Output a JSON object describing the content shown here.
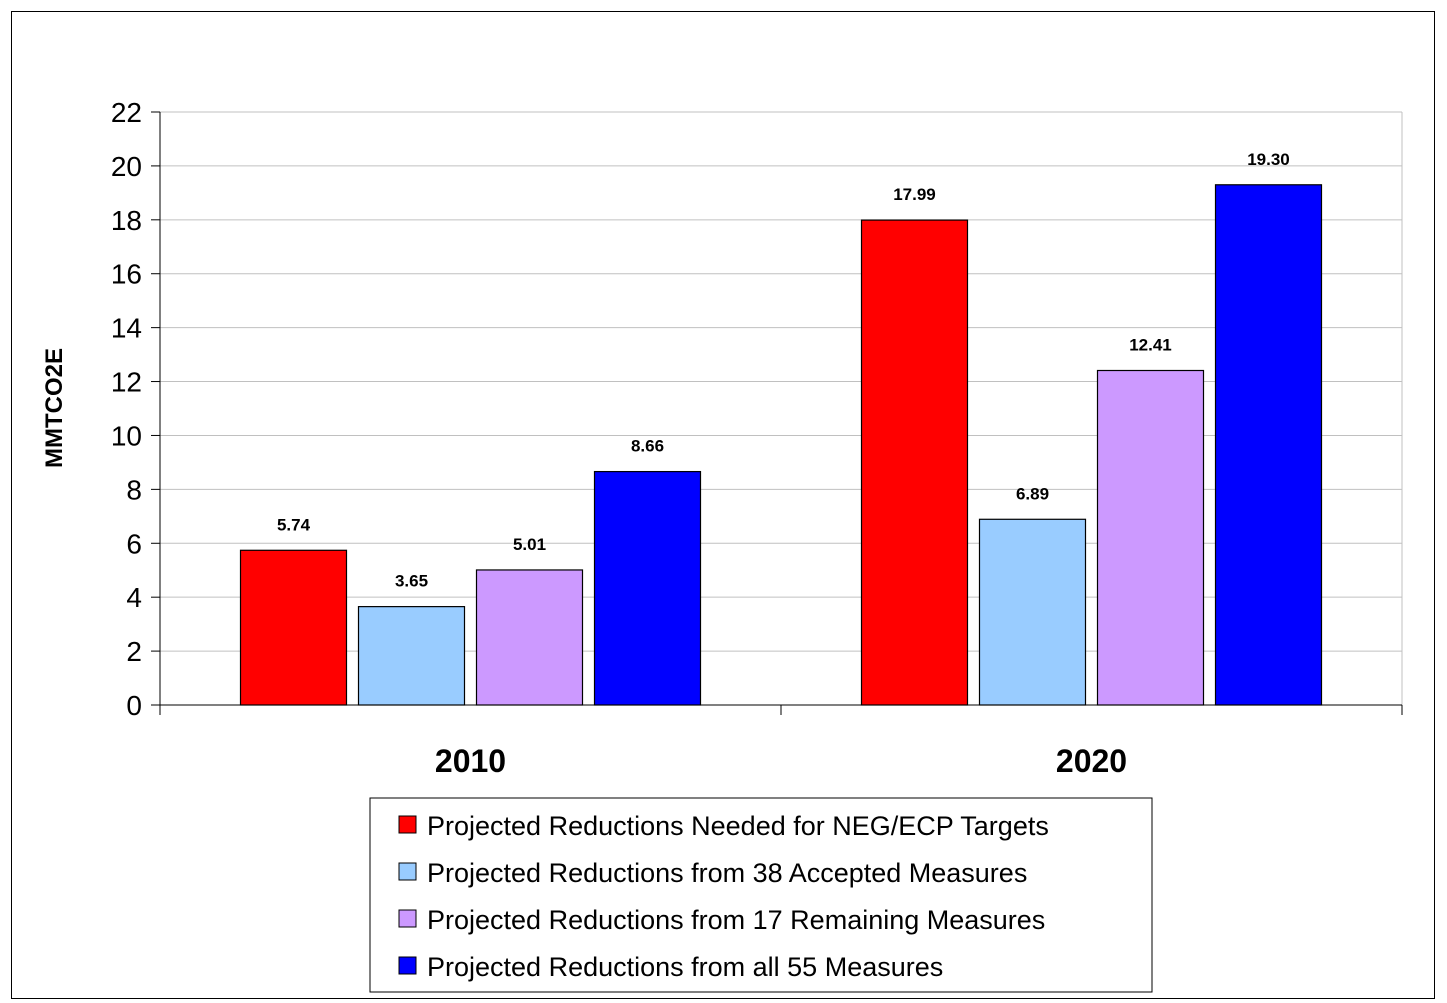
{
  "chart_data": {
    "type": "bar",
    "title": "",
    "xlabel": "",
    "ylabel": "MMTCO2E",
    "ylim": [
      0,
      22
    ],
    "yticks": [
      0,
      2,
      4,
      6,
      8,
      10,
      12,
      14,
      16,
      18,
      20,
      22
    ],
    "grid": true,
    "legend_position": "bottom",
    "categories": [
      "2010",
      "2020"
    ],
    "series": [
      {
        "name": "Projected Reductions Needed for NEG/ECP Targets",
        "color": "#ff0000",
        "values": [
          5.74,
          17.99
        ],
        "labels": [
          "5.74",
          "17.99"
        ]
      },
      {
        "name": "Projected Reductions from 38 Accepted Measures",
        "color": "#99ccff",
        "values": [
          3.65,
          6.89
        ],
        "labels": [
          "3.65",
          "6.89"
        ]
      },
      {
        "name": "Projected Reductions from 17 Remaining Measures",
        "color": "#cc99ff",
        "values": [
          5.01,
          12.41
        ],
        "labels": [
          "5.01",
          "12.41"
        ]
      },
      {
        "name": "Projected Reductions from all 55 Measures",
        "color": "#0000ff",
        "values": [
          8.66,
          19.3
        ],
        "labels": [
          "8.66",
          "19.30"
        ]
      }
    ]
  }
}
